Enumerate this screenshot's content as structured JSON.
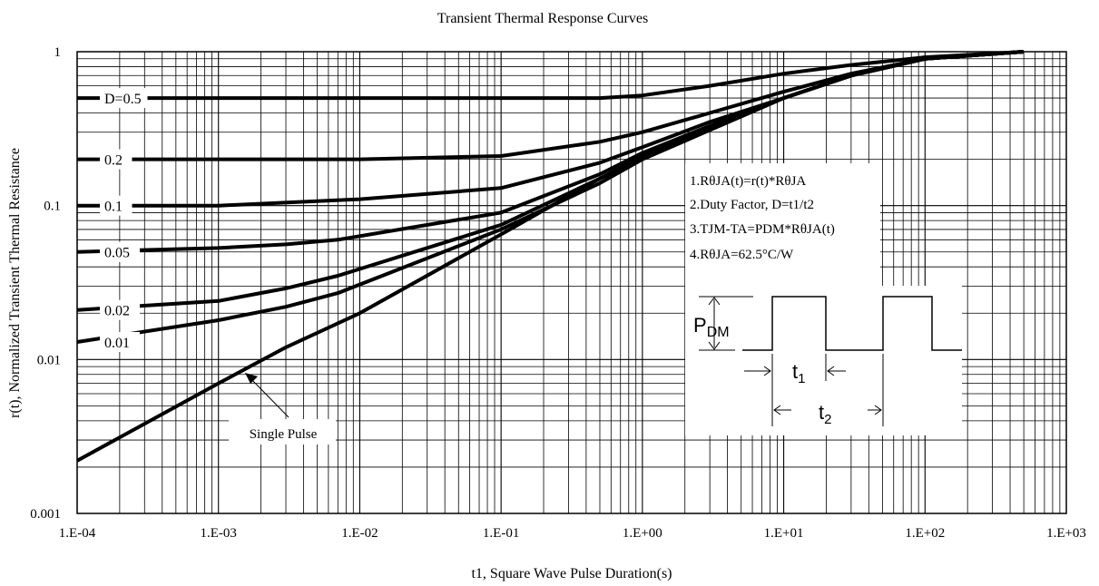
{
  "chart_data": {
    "type": "line",
    "title": "Transient Thermal Response Curves",
    "xlabel": "t1, Square Wave Pulse Duration(s)",
    "ylabel": "r(t), Normalized Transient Thermal Resistance",
    "x_scale": "log",
    "y_scale": "log",
    "xlim": [
      0.0001,
      1000
    ],
    "ylim": [
      0.001,
      1
    ],
    "grid": true,
    "x_ticks": [
      "1.E-04",
      "1.E-03",
      "1.E-02",
      "1.E-01",
      "1.E+00",
      "1.E+01",
      "1.E+02",
      "1.E+03"
    ],
    "y_ticks": [
      "0.001",
      "0.01",
      "0.1",
      "1"
    ],
    "series": [
      {
        "name": "D=0.5",
        "x": [
          0.0001,
          0.001,
          0.01,
          0.1,
          0.5,
          1,
          3,
          10,
          30,
          100,
          500
        ],
        "y": [
          0.5,
          0.5,
          0.5,
          0.5,
          0.5,
          0.52,
          0.6,
          0.72,
          0.82,
          0.92,
          1.0
        ]
      },
      {
        "name": "0.2",
        "x": [
          0.0001,
          0.001,
          0.01,
          0.1,
          0.5,
          1,
          3,
          10,
          30,
          100,
          500
        ],
        "y": [
          0.2,
          0.2,
          0.2,
          0.21,
          0.26,
          0.3,
          0.4,
          0.55,
          0.72,
          0.9,
          1.0
        ]
      },
      {
        "name": "0.1",
        "x": [
          0.0001,
          0.001,
          0.01,
          0.1,
          0.5,
          1,
          3,
          10,
          30,
          100,
          500
        ],
        "y": [
          0.1,
          0.1,
          0.11,
          0.13,
          0.19,
          0.24,
          0.35,
          0.5,
          0.7,
          0.9,
          1.0
        ]
      },
      {
        "name": "0.05",
        "x": [
          0.0001,
          0.001,
          0.003,
          0.007,
          0.1,
          0.5,
          1,
          3,
          10,
          30,
          100,
          500
        ],
        "y": [
          0.05,
          0.053,
          0.056,
          0.06,
          0.09,
          0.16,
          0.22,
          0.33,
          0.5,
          0.7,
          0.9,
          1.0
        ]
      },
      {
        "name": "0.02",
        "x": [
          0.0001,
          0.001,
          0.003,
          0.007,
          0.1,
          0.5,
          1,
          3,
          10,
          30,
          100,
          500
        ],
        "y": [
          0.021,
          0.024,
          0.029,
          0.035,
          0.075,
          0.15,
          0.21,
          0.32,
          0.5,
          0.7,
          0.9,
          1.0
        ]
      },
      {
        "name": "0.01",
        "x": [
          0.0001,
          0.001,
          0.003,
          0.007,
          0.1,
          0.5,
          1,
          3,
          10,
          30,
          100,
          500
        ],
        "y": [
          0.013,
          0.018,
          0.022,
          0.027,
          0.07,
          0.14,
          0.2,
          0.31,
          0.5,
          0.7,
          0.9,
          1.0
        ]
      },
      {
        "name": "Single Pulse",
        "x": [
          0.0001,
          0.001,
          0.003,
          0.01,
          0.1,
          0.5,
          1,
          3,
          10,
          30,
          100,
          500
        ],
        "y": [
          0.0022,
          0.007,
          0.012,
          0.02,
          0.065,
          0.15,
          0.2,
          0.31,
          0.5,
          0.7,
          0.9,
          1.0
        ]
      }
    ],
    "annotations": {
      "notes": [
        "1.RθJA(t)=r(t)*RθJA",
        "2.Duty Factor, D=t1/t2",
        "3.TJM-TA=PDM*RθJA(t)",
        "4.RθJA=62.5°C/W"
      ],
      "pdm_label": "P",
      "pdm_sub": "DM",
      "t1_label": "t",
      "t1_sub": "1",
      "t2_label": "t",
      "t2_sub": "2",
      "single_pulse_label": "Single Pulse"
    }
  }
}
